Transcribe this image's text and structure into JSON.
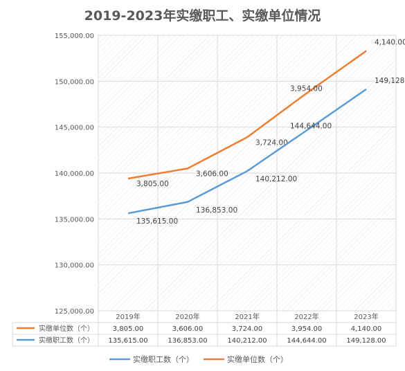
{
  "chart_data": {
    "type": "line",
    "title": "2019-2023年实缴职工、实缴单位情况",
    "categories": [
      "2019年",
      "2020年",
      "2021年",
      "2022年",
      "2023年"
    ],
    "y_ticks": [
      "125,000.00",
      "130,000.00",
      "135,000.00",
      "140,000.00",
      "145,000.00",
      "150,000.00",
      "155,000.00"
    ],
    "ylim": [
      125000,
      155000
    ],
    "grid": true,
    "legend_position": "bottom",
    "data_table": true,
    "series": [
      {
        "name": "实缴单位数（个）",
        "color": "#ED7D31",
        "values": [
          3805,
          3606,
          3724,
          3954,
          4140
        ],
        "plot_values": [
          139400,
          140500,
          143900,
          148700,
          153300
        ],
        "labels": [
          "3,805.00",
          "3,606.00",
          "3,724.00",
          "3,954.00",
          "4,140.00"
        ]
      },
      {
        "name": "实缴职工数（个）",
        "color": "#5B9BD5",
        "values": [
          135615,
          136853,
          140212,
          144644,
          149128
        ],
        "plot_values": [
          135615,
          136853,
          140212,
          144644,
          149128
        ],
        "labels": [
          "135,615.00",
          "136,853.00",
          "140,212.00",
          "144,644.00",
          "149,128.00"
        ]
      }
    ],
    "legend": [
      "实缴职工数（个）",
      "实缴单位数（个）"
    ]
  }
}
